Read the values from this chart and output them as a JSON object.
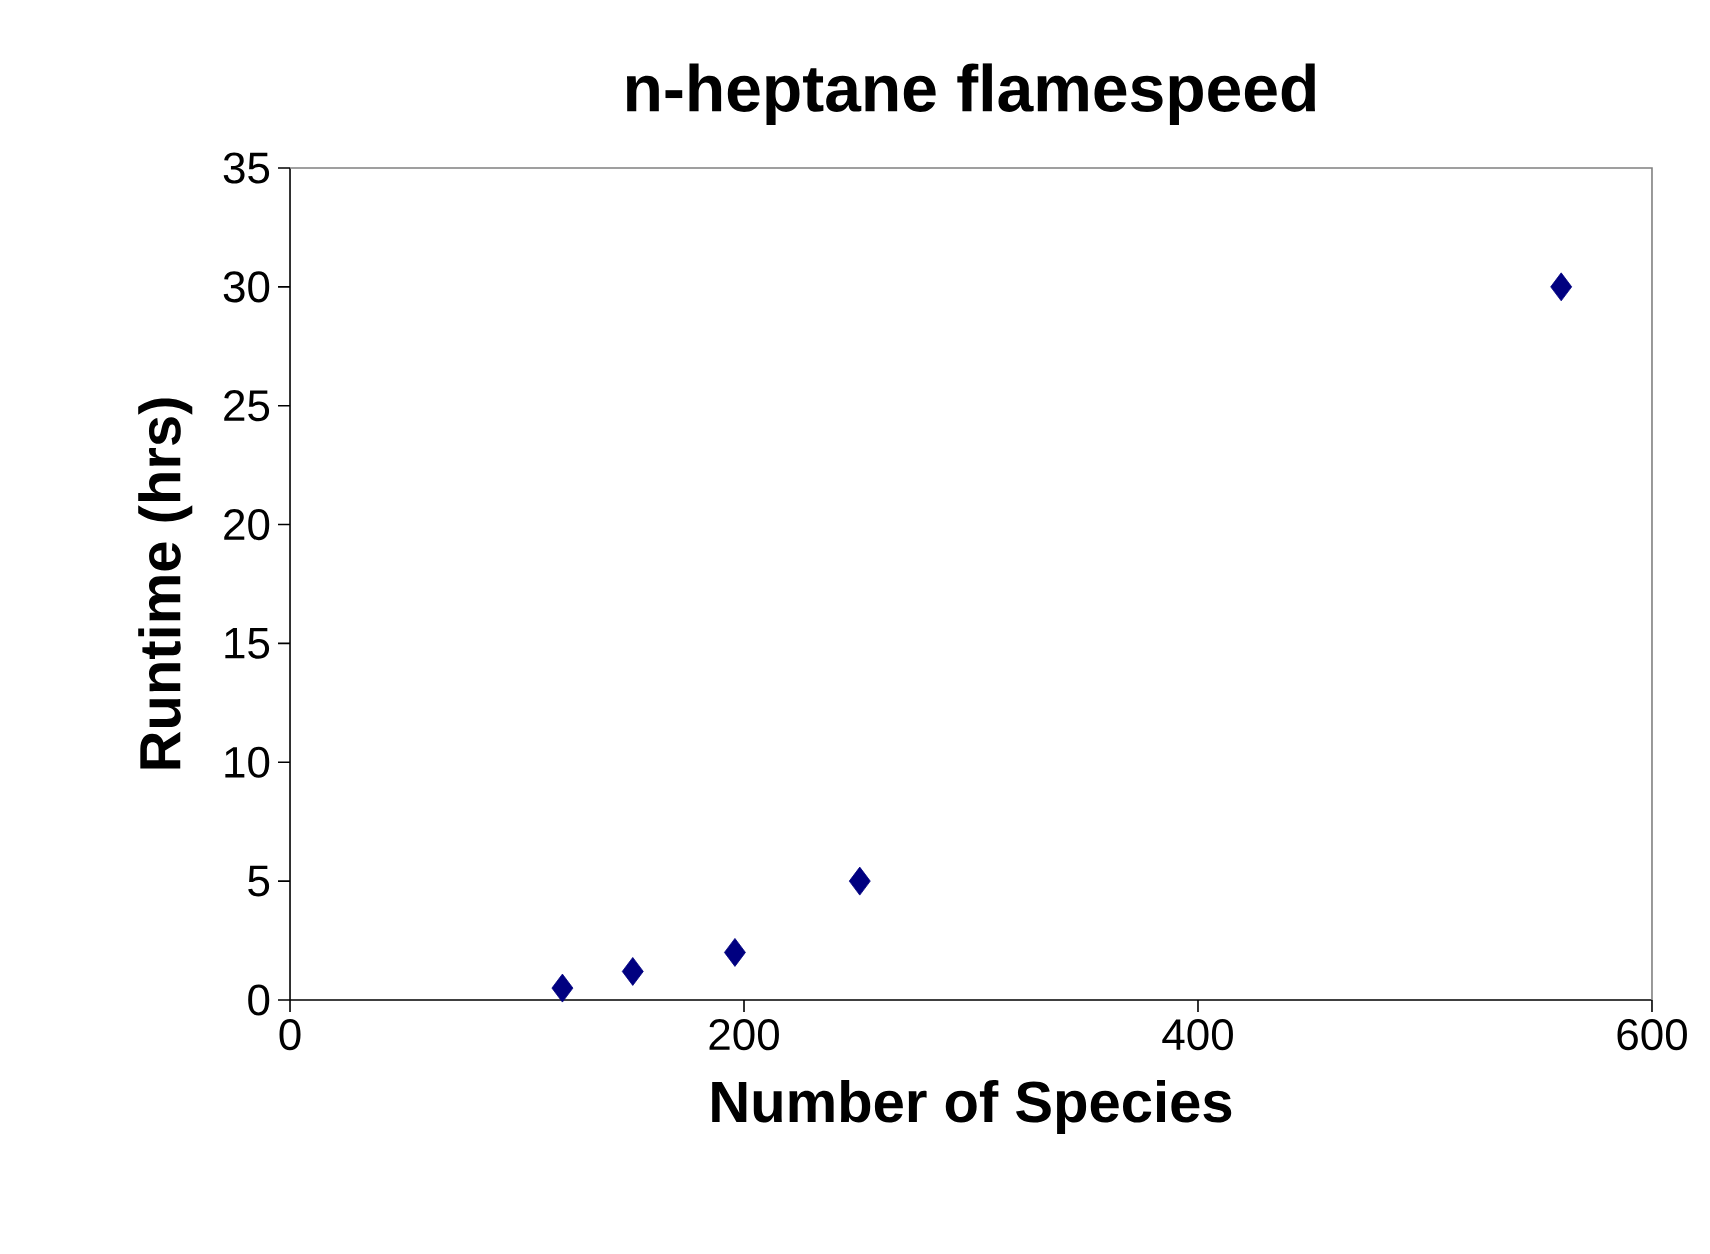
{
  "chart_data": {
    "type": "scatter",
    "title": "n-heptane flamespeed",
    "xlabel": "Number of Species",
    "ylabel": "Runtime (hrs)",
    "x": [
      120,
      151,
      196,
      251,
      560
    ],
    "series": [
      {
        "color": "#000080",
        "values": [
          0.5,
          1.2,
          2,
          5,
          30
        ]
      }
    ],
    "xlim": [
      0,
      600
    ],
    "ylim": [
      0,
      35
    ],
    "xticks": [
      0,
      200,
      400,
      600
    ],
    "yticks": [
      0,
      5,
      10,
      15,
      20,
      25,
      30,
      35
    ],
    "marker": "diamond"
  }
}
